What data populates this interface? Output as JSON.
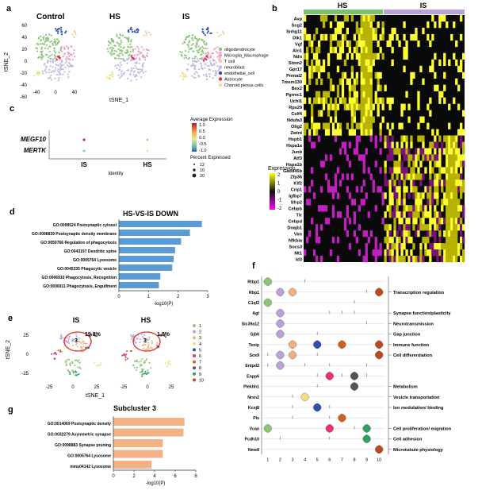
{
  "panel_labels": {
    "a": "a",
    "b": "b",
    "c": "c",
    "d": "d",
    "e": "e",
    "f": "f",
    "g": "g"
  },
  "panel_a": {
    "titles": [
      "Control",
      "HS",
      "IS"
    ],
    "xlabel": "tSNE_1",
    "ylabel": "tSNE_2",
    "yticks": [
      "60",
      "40",
      "20",
      "0",
      "-20",
      "-40",
      "-60"
    ],
    "xticks": [
      "-40",
      "0",
      "40"
    ],
    "legend": [
      {
        "label": "oligodendrocyte",
        "color": "#8cc47a"
      },
      {
        "label": "Microglia_Macrophage",
        "color": "#e8a0c0"
      },
      {
        "label": "T cell",
        "color": "#f4c6a0"
      },
      {
        "label": "neuroblast",
        "color": "#c5b8e0"
      },
      {
        "label": "endothelial_cell",
        "color": "#2e4fb0"
      },
      {
        "label": "Astrocyte",
        "color": "#e0304a"
      },
      {
        "label": "Choroid plexus cells",
        "color": "#f0e080"
      }
    ]
  },
  "panel_b": {
    "groups": [
      {
        "label": "HS",
        "color": "#7bc06a"
      },
      {
        "label": "IS",
        "color": "#b8a2d8"
      }
    ],
    "genes": [
      "Avp",
      "Scg2",
      "Snhg11",
      "Dlk1",
      "Vgf",
      "Aln1",
      "Ndn",
      "Stmn2",
      "Gpr17",
      "Pnmal2",
      "Tmem130",
      "Bex2",
      "Pgrmc1",
      "Uchl1",
      "Rps29",
      "Celf4",
      "Ndufa3",
      "Olig2",
      "Zwint",
      "Hspb1",
      "Hspa1a",
      "Junb",
      "Atf3",
      "Hspa1b",
      "Gadd45b",
      "Zfp36",
      "Klf2",
      "Crip1",
      "Igfbp7",
      "Sfrp2",
      "Cebpb",
      "Ttr",
      "Cebpd",
      "Dnajb1",
      "Vim",
      "Nfkbia",
      "Socs3",
      "Mt1",
      "Id3"
    ],
    "legend_title": "Expression",
    "legend_ticks": [
      "2",
      "1",
      "0",
      "-1",
      "-2"
    ]
  },
  "panel_c": {
    "genes": [
      "MEGF10",
      "MERTK"
    ],
    "groups": [
      "IS",
      "HS"
    ],
    "xlabel": "Identity",
    "color_title": "Average Expression",
    "color_ticks": [
      "1.0",
      "0.5",
      "0.0",
      "-0.5",
      "-1.0"
    ],
    "size_title": "Percent Expressed",
    "size_ticks": [
      "12",
      "10",
      "20"
    ]
  },
  "chart_data": [
    {
      "type": "bar",
      "orientation": "horizontal",
      "title": "HS-VS-IS DOWN",
      "categories": [
        "GO:0099524 Postsynaptic cytosol",
        "GO:0098839 Postsynaptic density membrane",
        "GO:0050766 Regulation of phagocytosis",
        "GO:0043197 Dendritic spine",
        "GO:0005764 Lysosome",
        "GO:0045335 Phagocytic vesicle",
        "GO:0006910 Phagocytosis, Recognition",
        "GO:0006911 Phagocytosis, Engulfment"
      ],
      "values": [
        2.8,
        2.4,
        2.1,
        1.9,
        1.85,
        1.8,
        1.4,
        1.35
      ],
      "xlabel": "-log10(P)",
      "xticks": [
        "0",
        "1",
        "2",
        "3"
      ],
      "xlim": [
        0,
        3
      ],
      "bar_color": "#5b9bd5"
    },
    {
      "type": "bar",
      "orientation": "horizontal",
      "title": "Subcluster 3",
      "categories": [
        "GO:0014069 Postsynaptic density",
        "GO:0032279 Asymmetric synapse",
        "GO:0098883 Synapse pruning",
        "GO:0005764 Lysosome",
        "mmu04142 Lysosome"
      ],
      "values": [
        6.9,
        6.8,
        4.8,
        4.8,
        3.7
      ],
      "xlabel": "-log10(P)",
      "xticks": [
        "0",
        "2",
        "4",
        "6",
        "8"
      ],
      "xlim": [
        0,
        8
      ],
      "bar_color": "#f4b183"
    }
  ],
  "panel_e": {
    "titles": [
      "IS",
      "HS"
    ],
    "percents": [
      "19.8%",
      "1.8%"
    ],
    "highlight": "3",
    "xlabel": "tSNE_1",
    "ylabel": "tSNE_2",
    "yticks": [
      "25",
      "0",
      "-25"
    ],
    "xticks": [
      "-25",
      "0",
      "25"
    ],
    "legend": [
      {
        "label": "1",
        "color": "#8cc47a"
      },
      {
        "label": "2",
        "color": "#b8a2d8"
      },
      {
        "label": "3",
        "color": "#f0b080"
      },
      {
        "label": "4",
        "color": "#f0e080"
      },
      {
        "label": "5",
        "color": "#2e4fb0"
      },
      {
        "label": "6",
        "color": "#e8307a"
      },
      {
        "label": "7",
        "color": "#d06020"
      },
      {
        "label": "8",
        "color": "#555555"
      },
      {
        "label": "9",
        "color": "#30a060"
      },
      {
        "label": "10",
        "color": "#c04820"
      }
    ]
  },
  "panel_f": {
    "genes": [
      "Rtbp1",
      "Rbp1",
      "C1ql2",
      "Agt",
      "Slc39a12",
      "Gjb6",
      "Tenip",
      "Sox9",
      "Entpd2",
      "Enpp6",
      "Plekhh1",
      "Nrxn2",
      "Kcnj8",
      "Pls",
      "Vcan",
      "Pcdh10",
      "Nme8"
    ],
    "clusters": [
      "1",
      "2",
      "3",
      "4",
      "5",
      "6",
      "7",
      "8",
      "9",
      "10"
    ],
    "categories": [
      "Transcription regulation",
      "Synapse function/plasticity",
      "Neurotransmission",
      "Gap junction",
      "Immune function",
      "Cell differentiation",
      "Metabolism",
      "Vesicle transportation",
      "Ion modulation/ binding",
      "Cell proliferation/ migration",
      "Cell adhesion",
      "Microtubule physiology"
    ]
  }
}
